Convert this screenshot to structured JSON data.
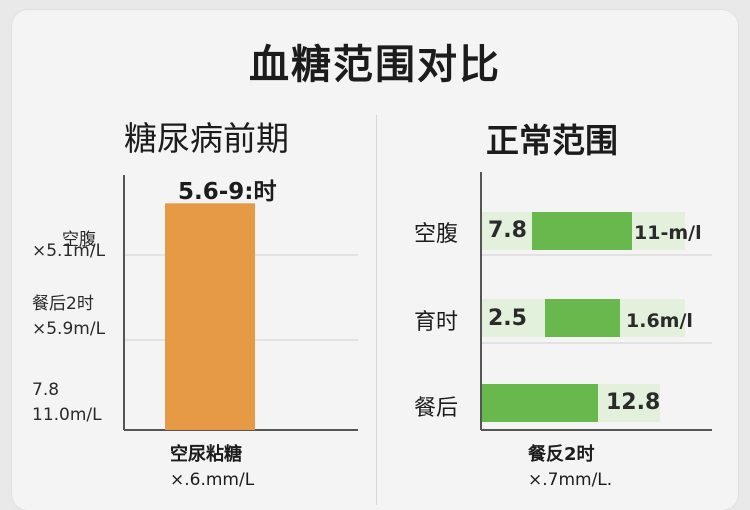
{
  "title": "血糖范围对比",
  "colors": {
    "orange": "#e79a45",
    "green": "#68b84e",
    "pale_green": "#e3f0dc",
    "axis": "#555555",
    "grid": "#cfcfcf"
  },
  "left": {
    "title": "糖尿病前期",
    "top_value": "5.6-9:时",
    "y_labels": [
      {
        "line1": "空腹",
        "line2": "×5.1m/L"
      },
      {
        "line1": "餐后2时",
        "line2": "×5.9m/L"
      },
      {
        "line1": "7.8",
        "line2": "11.0m/L"
      }
    ],
    "category": "空尿粘糖",
    "category_sub": "×.6.mm/L"
  },
  "right": {
    "title": "正常范围",
    "rows": [
      {
        "label": "空腹",
        "left_text": "7.8",
        "right_text": "11-m/l"
      },
      {
        "label": "育时",
        "left_text": "2.5",
        "right_text": "1.6m/l"
      },
      {
        "label": "餐后",
        "left_text": "",
        "right_text": "12.8"
      }
    ],
    "category": "餐反2时",
    "category_sub": "×.7mm/L."
  },
  "chart_data": [
    {
      "type": "bar",
      "title": "糖尿病前期",
      "categories": [
        "空尿粘糖"
      ],
      "values": [
        5.6
      ],
      "ytick_labels": [
        "空腹 ×5.1m/L",
        "餐后2时 ×5.9m/L",
        "7.8 11.0m/L"
      ],
      "grid": true
    },
    {
      "type": "bar",
      "title": "正常范围",
      "orientation": "horizontal",
      "categories": [
        "空腹",
        "育时",
        "餐后"
      ],
      "values": [
        7.8,
        2.5,
        12.8
      ],
      "end_labels": [
        "11-m/l",
        "1.6m/l",
        "12.8"
      ],
      "grid": true
    }
  ]
}
